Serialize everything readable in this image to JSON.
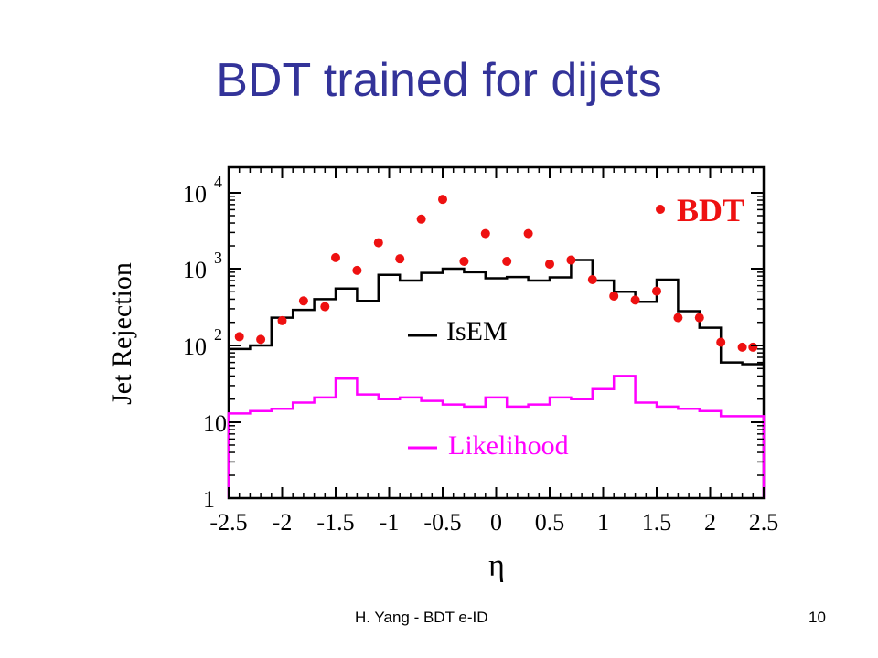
{
  "slide": {
    "title": "BDT trained for dijets",
    "footer_left": "H. Yang - BDT e-ID",
    "page_number": "10"
  },
  "chart_data": {
    "type": "line",
    "xlabel": "η",
    "ylabel": "Jet Rejection",
    "xlim": [
      -2.5,
      2.5
    ],
    "ylim": [
      1,
      20000
    ],
    "yscale": "log",
    "x_ticks": [
      "-2.5",
      "-2",
      "-1.5",
      "-1",
      "-0.5",
      "0",
      "0.5",
      "1",
      "1.5",
      "2",
      "2.5"
    ],
    "y_ticks": [
      {
        "base": "1",
        "exp": ""
      },
      {
        "base": "10",
        "exp": ""
      },
      {
        "base": "10",
        "exp": "2"
      },
      {
        "base": "10",
        "exp": "3"
      },
      {
        "base": "10",
        "exp": "4"
      }
    ],
    "grid": false,
    "colors": {
      "BDT": "#ee1111",
      "IsEM": "#000000",
      "Likelihood": "#ff00ff"
    },
    "series": [
      {
        "name": "BDT",
        "style": "points",
        "x": [
          -2.4,
          -2.2,
          -2.0,
          -1.8,
          -1.6,
          -1.5,
          -1.3,
          -1.1,
          -0.9,
          -0.7,
          -0.5,
          -0.3,
          -0.1,
          0.1,
          0.3,
          0.5,
          0.7,
          0.9,
          1.1,
          1.3,
          1.5,
          1.7,
          1.9,
          2.1,
          2.3,
          2.4
        ],
        "y": [
          130,
          120,
          210,
          380,
          320,
          1400,
          950,
          2200,
          1350,
          4500,
          8200,
          1250,
          2900,
          1250,
          2900,
          1150,
          1300,
          720,
          440,
          390,
          510,
          230,
          230,
          110,
          95,
          95
        ]
      },
      {
        "name": "IsEM",
        "style": "step",
        "edges": [
          -2.5,
          -2.3,
          -2.1,
          -1.9,
          -1.7,
          -1.5,
          -1.3,
          -1.1,
          -0.9,
          -0.7,
          -0.5,
          -0.3,
          -0.1,
          0.1,
          0.3,
          0.5,
          0.7,
          0.9,
          1.1,
          1.3,
          1.5,
          1.7,
          1.9,
          2.1,
          2.3,
          2.5
        ],
        "y": [
          90,
          100,
          230,
          290,
          400,
          550,
          380,
          830,
          700,
          880,
          1000,
          900,
          750,
          780,
          700,
          770,
          1300,
          700,
          500,
          370,
          720,
          280,
          170,
          60,
          57
        ]
      },
      {
        "name": "Likelihood",
        "style": "step",
        "edges": [
          -2.5,
          -2.3,
          -2.1,
          -1.9,
          -1.7,
          -1.5,
          -1.3,
          -1.1,
          -0.9,
          -0.7,
          -0.5,
          -0.3,
          -0.1,
          0.1,
          0.3,
          0.5,
          0.7,
          0.9,
          1.1,
          1.3,
          1.5,
          1.7,
          1.9,
          2.1,
          2.3,
          2.5
        ],
        "y": [
          13,
          14,
          15,
          18,
          21,
          37,
          23,
          20,
          21,
          19,
          17,
          16,
          21,
          16,
          17,
          21,
          20,
          27,
          40,
          18,
          16,
          15,
          14,
          12,
          12
        ]
      }
    ]
  }
}
